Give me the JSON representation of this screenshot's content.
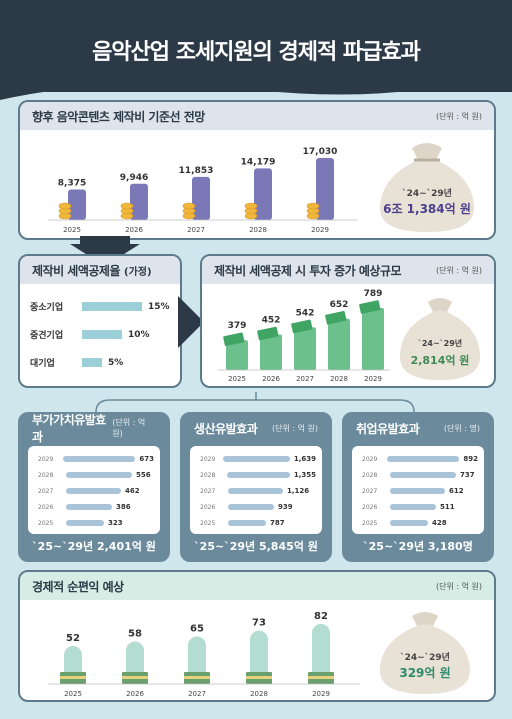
{
  "title": "음악산업 조세지원의 경제적 파급효과",
  "colors": {
    "header": "#2c3a47",
    "bg": "#cfe6ec",
    "purple": "#7b78b8",
    "green": "#6cc08b",
    "mint": "#b3ddd0",
    "steel": "#6b8a9c",
    "hbar": "#a9c3d8",
    "coin": "#f0b83a"
  },
  "section1": {
    "title": "향후 음악콘텐츠 제작비 기준선 전망",
    "unit": "(단위 : 억 원)",
    "summary_period": "`24~`29년",
    "summary_value": "6조 1,384억 원"
  },
  "section2": {
    "title": "제작비 세액공제율",
    "title_suffix": "(가정)",
    "rows": [
      {
        "label": "중소기업",
        "value": 15,
        "text": "15%"
      },
      {
        "label": "중견기업",
        "value": 10,
        "text": "10%"
      },
      {
        "label": "대기업",
        "value": 5,
        "text": "5%"
      }
    ]
  },
  "section3": {
    "title": "제작비 세액공제 시 투자 증가 예상규모",
    "unit": "(단위 : 억 원)",
    "summary_period": "`24~`29년",
    "summary_value": "2,814억 원"
  },
  "section4": [
    {
      "title": "부가가치유발효과",
      "unit": "(단위 : 억 원)",
      "summary": "`25~`29년 2,401억 원",
      "rows": [
        {
          "year": "2029",
          "value": 673,
          "text": "673"
        },
        {
          "year": "2028",
          "value": 556,
          "text": "556"
        },
        {
          "year": "2027",
          "value": 462,
          "text": "462"
        },
        {
          "year": "2026",
          "value": 386,
          "text": "386"
        },
        {
          "year": "2025",
          "value": 323,
          "text": "323"
        }
      ]
    },
    {
      "title": "생산유발효과",
      "unit": "(단위 : 억 원)",
      "summary": "`25~`29년 5,845억 원",
      "rows": [
        {
          "year": "2029",
          "value": 1639,
          "text": "1,639"
        },
        {
          "year": "2028",
          "value": 1355,
          "text": "1,355"
        },
        {
          "year": "2027",
          "value": 1126,
          "text": "1,126"
        },
        {
          "year": "2026",
          "value": 939,
          "text": "939"
        },
        {
          "year": "2025",
          "value": 787,
          "text": "787"
        }
      ]
    },
    {
      "title": "취업유발효과",
      "unit": "(단위 : 명)",
      "summary": "`25~`29년 3,180명",
      "rows": [
        {
          "year": "2029",
          "value": 892,
          "text": "892"
        },
        {
          "year": "2028",
          "value": 737,
          "text": "737"
        },
        {
          "year": "2027",
          "value": 612,
          "text": "612"
        },
        {
          "year": "2026",
          "value": 511,
          "text": "511"
        },
        {
          "year": "2025",
          "value": 428,
          "text": "428"
        }
      ]
    }
  ],
  "section5": {
    "title": "경제적 순편익 예상",
    "unit": "(단위 : 억 원)",
    "summary_period": "`24~`29년",
    "summary_value": "329억 원"
  },
  "chart_data": [
    {
      "type": "bar",
      "categories": [
        "2025",
        "2026",
        "2027",
        "2028",
        "2029"
      ],
      "values": [
        8375,
        9946,
        11853,
        14179,
        17030
      ],
      "labels": [
        "8,375",
        "9,946",
        "11,853",
        "14,179",
        "17,030"
      ]
    },
    {
      "type": "bar",
      "categories": [
        "2025",
        "2026",
        "2027",
        "2028",
        "2029"
      ],
      "values": [
        379,
        452,
        542,
        652,
        789
      ],
      "labels": [
        "379",
        "452",
        "542",
        "652",
        "789"
      ]
    },
    {
      "type": "bar",
      "categories": [
        "2025",
        "2026",
        "2027",
        "2028",
        "2029"
      ],
      "values": [
        52,
        58,
        65,
        73,
        82
      ],
      "labels": [
        "52",
        "58",
        "65",
        "73",
        "82"
      ]
    }
  ]
}
